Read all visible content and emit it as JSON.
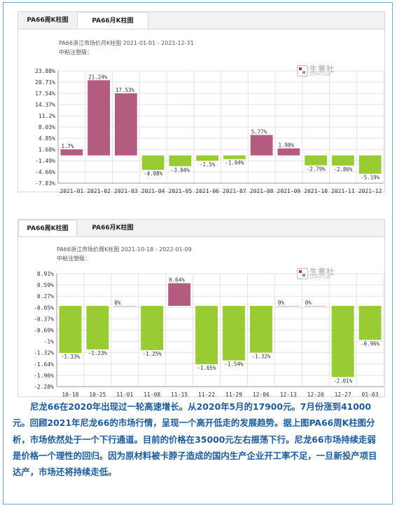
{
  "chart1": {
    "tabs": [
      "PA66周K柱图",
      "PA66月K柱图"
    ],
    "active_tab": 1,
    "title": "PA66浙江市场价月K柱图 2021-01-01 - 2021-12-31",
    "subtitle": "中粘注塑级：",
    "logo_text": "生意社",
    "logo_sub": "100PPI.COM"
  },
  "chart2": {
    "tabs": [
      "PA66周K柱图",
      "PA66月K柱图"
    ],
    "active_tab": 0,
    "title": "PA66浙江市场价周K柱图 2021-10-18 - 2022-01-09",
    "subtitle": "中粘注塑级：",
    "logo_text": "生意社",
    "logo_sub": "100PPI.COM"
  },
  "chart_data": [
    {
      "type": "bar",
      "title": "PA66浙江市场价月K柱图 2021-01-01 - 2021-12-31",
      "categories": [
        "2021-01",
        "2021-02",
        "2021-03",
        "2021-04",
        "2021-05",
        "2021-06",
        "2021-07",
        "2021-08",
        "2021-09",
        "2021-10",
        "2021-11",
        "2021-12"
      ],
      "values": [
        1.7,
        21.24,
        17.53,
        -4.08,
        -3.04,
        -1.5,
        -1.04,
        5.77,
        1.98,
        -2.79,
        -2.86,
        -5.19
      ],
      "labels": [
        "1.7%",
        "21.24%",
        "17.53%",
        "-4.08%",
        "-3.04%",
        "-1.5%",
        "-1.04%",
        "5.77%",
        "1.98%",
        "-2.79%",
        "-2.86%",
        "-5.19%"
      ],
      "yticks": [
        "23.88%",
        "20.71%",
        "17.54%",
        "14.37%",
        "11.2%",
        "8.03%",
        "4.85%",
        "1.68%",
        "-1.49%",
        "-4.66%",
        "-7.83%"
      ],
      "ylim": [
        -7.83,
        23.88
      ],
      "grid": true,
      "colors": {
        "up": "#b35c80",
        "down": "#99cc33"
      }
    },
    {
      "type": "bar",
      "title": "PA66浙江市场价周K柱图 2021-10-18 - 2022-01-09",
      "categories": [
        "10-18",
        "10-25",
        "11-01",
        "11-08",
        "11-15",
        "11-22",
        "11-29",
        "12-06",
        "12-13",
        "12-20",
        "12-27",
        "01-03"
      ],
      "values": [
        -1.33,
        -1.23,
        0,
        -1.25,
        0.64,
        -1.65,
        -1.54,
        -1.32,
        0,
        0,
        -2.01,
        -0.96
      ],
      "labels": [
        "-1.33%",
        "-1.23%",
        "0%",
        "-1.25%",
        "0.64%",
        "-1.65%",
        "-1.54%",
        "-1.32%",
        "0%",
        "0%",
        "-2.01%",
        "-0.96%"
      ],
      "yticks": [
        "0.91%",
        "0.59%",
        "0.27%",
        "-0.05%",
        "-0.37%",
        "-0.69%",
        "-1%",
        "-1.32%",
        "-1.64%",
        "-1.96%",
        "-2.28%"
      ],
      "ylim": [
        -2.28,
        0.91
      ],
      "grid": true,
      "colors": {
        "up": "#b35c80",
        "down": "#99cc33"
      }
    }
  ],
  "paragraph": "尼龙66在2020年出现过一轮高速增长。从2020年5月的17900元。7月份涨到41000元。回顾2021年尼龙66的市场行情，呈现一个高开低走的发展趋势。据上图PA66周K柱图分析，市场依然处于一个下行通道。目前的价格在35000元左右振荡下行。尼龙66市场持续走弱是价格一个理性的回归。因为原材料被卡脖子造成的国内生产企业开工率不足，一旦新投产项目达产，市场还将持续走低。"
}
